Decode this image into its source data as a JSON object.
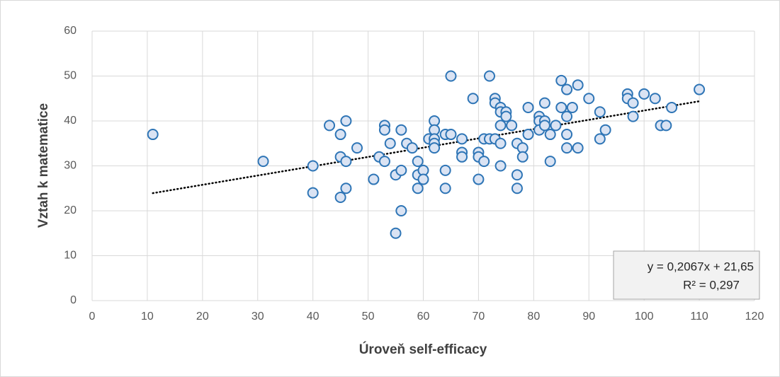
{
  "chart_data": {
    "type": "scatter",
    "xlabel": "Úroveň self-efficacy",
    "ylabel": "Vztah k matematice",
    "x": [
      11,
      31,
      40,
      40,
      43,
      45,
      45,
      45,
      46,
      46,
      46,
      48,
      51,
      52,
      53,
      53,
      53,
      54,
      55,
      55,
      56,
      56,
      56,
      57,
      58,
      59,
      59,
      59,
      60,
      60,
      61,
      62,
      62,
      62,
      62,
      62,
      64,
      64,
      64,
      65,
      65,
      67,
      67,
      67,
      69,
      70,
      70,
      70,
      71,
      71,
      72,
      72,
      73,
      73,
      73,
      74,
      74,
      74,
      74,
      74,
      75,
      75,
      76,
      77,
      77,
      77,
      78,
      78,
      79,
      79,
      81,
      81,
      81,
      82,
      82,
      82,
      83,
      83,
      84,
      85,
      85,
      86,
      86,
      86,
      86,
      87,
      88,
      88,
      90,
      92,
      92,
      93,
      97,
      97,
      98,
      98,
      100,
      102,
      103,
      104,
      105,
      110
    ],
    "values": [
      37,
      31,
      30,
      24,
      39,
      37,
      32,
      23,
      40,
      31,
      25,
      34,
      27,
      32,
      39,
      38,
      31,
      35,
      28,
      15,
      38,
      29,
      20,
      35,
      34,
      31,
      28,
      25,
      29,
      27,
      36,
      40,
      38,
      36,
      35,
      34,
      37,
      29,
      25,
      50,
      37,
      36,
      33,
      32,
      45,
      33,
      32,
      27,
      36,
      31,
      50,
      36,
      45,
      44,
      36,
      43,
      42,
      39,
      35,
      30,
      42,
      41,
      39,
      35,
      28,
      25,
      34,
      32,
      43,
      37,
      41,
      40,
      38,
      44,
      40,
      39,
      37,
      31,
      39,
      49,
      43,
      47,
      41,
      37,
      34,
      43,
      48,
      34,
      45,
      42,
      36,
      38,
      46,
      45,
      44,
      41,
      46,
      45,
      39,
      39,
      43,
      47
    ],
    "marker_fill": "#dae3f3",
    "marker_edge": "#2e75b6",
    "xlim": [
      0,
      120
    ],
    "xticks": [
      0,
      10,
      20,
      30,
      40,
      50,
      60,
      70,
      80,
      90,
      100,
      110,
      120
    ],
    "ylim": [
      0,
      60
    ],
    "yticks": [
      0,
      10,
      20,
      30,
      40,
      50,
      60
    ],
    "grid": true,
    "trendline": {
      "slope": 0.2067,
      "intercept": 21.65,
      "label": "y = 0,2067x + 21,65",
      "r2_label": "R² = 0,297",
      "color": "#000000"
    }
  }
}
